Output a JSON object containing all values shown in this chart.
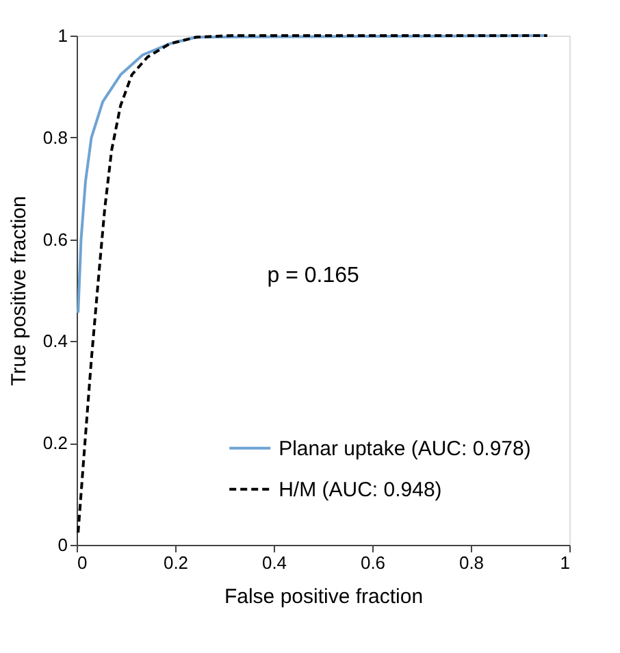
{
  "chart_data": {
    "type": "line",
    "xlabel": "False positive fraction",
    "ylabel": "True positive fraction",
    "xlim": [
      0,
      1
    ],
    "ylim": [
      0,
      1
    ],
    "xticks": [
      0,
      0.2,
      0.4,
      0.6,
      0.8,
      1
    ],
    "yticks": [
      0,
      0.2,
      0.4,
      0.6,
      0.8,
      1
    ],
    "grid": false,
    "legend": "bottom right",
    "marker": "none",
    "annotations": [
      "p = 0.165"
    ],
    "series": [
      {
        "name": "Planar uptake (AUC: 0.978)",
        "color": "#6fa3d3",
        "line_style": "solid",
        "x": [
          0.003,
          0.009,
          0.018,
          0.03,
          0.053,
          0.089,
          0.134,
          0.189,
          0.243,
          0.955
        ],
        "values": [
          0.456,
          0.6,
          0.714,
          0.8,
          0.87,
          0.923,
          0.962,
          0.984,
          0.997,
          1.0
        ]
      },
      {
        "name": "H/M (AUC: 0.948)",
        "color": "#000000",
        "line_style": "dashed",
        "x": [
          0.003,
          0.016,
          0.03,
          0.044,
          0.057,
          0.071,
          0.089,
          0.112,
          0.144,
          0.189,
          0.243,
          0.316,
          0.955
        ],
        "values": [
          0.024,
          0.19,
          0.365,
          0.52,
          0.66,
          0.775,
          0.862,
          0.923,
          0.958,
          0.984,
          0.997,
          1.0,
          1.0
        ]
      }
    ]
  }
}
